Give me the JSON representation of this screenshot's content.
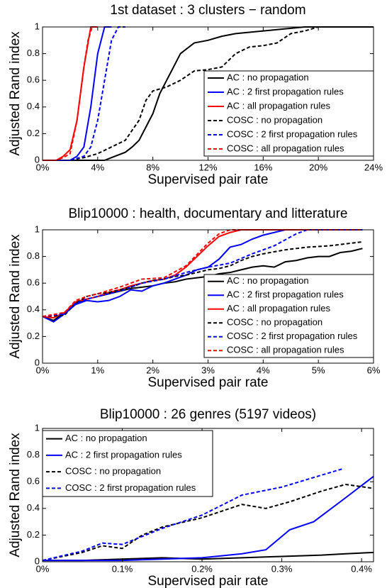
{
  "chart_data": [
    {
      "type": "line",
      "title": "1st dataset : 3 clusters − random",
      "xlabel": "Supervised pair rate",
      "ylabel": "Adjusted Rand index",
      "xlim": [
        0,
        24
      ],
      "ylim": [
        0,
        1
      ],
      "xticks": [
        {
          "value": 0,
          "label": "0%"
        },
        {
          "value": 4,
          "label": "4%"
        },
        {
          "value": 8,
          "label": "8%"
        },
        {
          "value": 12,
          "label": "12%"
        },
        {
          "value": 16,
          "label": "16%"
        },
        {
          "value": 20,
          "label": "20%"
        },
        {
          "value": 24,
          "label": "24%"
        }
      ],
      "yticks": [
        0,
        0.2,
        0.4,
        0.6,
        0.8,
        1
      ],
      "legend": "lower right",
      "series": [
        {
          "name": "AC : no propagation",
          "color": "#000000",
          "linestyle": "solid",
          "x": [
            0,
            4.5,
            5,
            6,
            6.5,
            7,
            7.5,
            8,
            8.5,
            9,
            9.5,
            10,
            11,
            12,
            13,
            14,
            15,
            16,
            17,
            18,
            19,
            24
          ],
          "values": [
            0,
            0,
            0.02,
            0.06,
            0.1,
            0.15,
            0.25,
            0.35,
            0.5,
            0.6,
            0.7,
            0.8,
            0.88,
            0.9,
            0.93,
            0.95,
            0.96,
            0.97,
            0.98,
            0.99,
            1,
            1
          ]
        },
        {
          "name": "AC : 2 first propagation rules",
          "color": "#0000ff",
          "linestyle": "solid",
          "x": [
            0,
            2,
            2.5,
            3,
            3.5,
            4,
            4.5,
            5
          ],
          "values": [
            0,
            0,
            0.03,
            0.1,
            0.4,
            0.8,
            1,
            1
          ]
        },
        {
          "name": "AC : all propagation rules",
          "color": "#ff0000",
          "linestyle": "solid",
          "x": [
            0,
            1,
            1.5,
            2,
            2.5,
            3,
            3.5,
            4
          ],
          "values": [
            0,
            0,
            0.03,
            0.08,
            0.3,
            0.7,
            1,
            1
          ]
        },
        {
          "name": "COSC : no propagation",
          "color": "#000000",
          "linestyle": "dashed",
          "x": [
            0,
            2,
            3,
            4,
            5,
            6,
            7,
            7.5,
            8,
            9,
            10,
            11,
            12,
            13,
            14,
            15,
            16,
            17,
            18,
            19,
            20,
            21
          ],
          "values": [
            0,
            0,
            0.02,
            0.05,
            0.1,
            0.15,
            0.3,
            0.45,
            0.52,
            0.55,
            0.6,
            0.67,
            0.68,
            0.7,
            0.8,
            0.85,
            0.86,
            0.88,
            0.95,
            0.97,
            1,
            1
          ]
        },
        {
          "name": "COSC : 2 first propagation rules",
          "color": "#0000ff",
          "linestyle": "dashed",
          "x": [
            0,
            2,
            3,
            3.5,
            4,
            4.5,
            5,
            5.5,
            6
          ],
          "values": [
            0,
            0,
            0.03,
            0.1,
            0.3,
            0.6,
            0.9,
            1,
            1
          ]
        },
        {
          "name": "COSC : all propagation rules",
          "color": "#ff0000",
          "linestyle": "dashed",
          "x": [
            0,
            1,
            1.5,
            2,
            2.5,
            3,
            3.3,
            3.6
          ],
          "values": [
            0,
            0,
            0.02,
            0.05,
            0.3,
            0.7,
            0.9,
            1
          ]
        }
      ]
    },
    {
      "type": "line",
      "title": "Blip10000 : health, documentary and litterature",
      "xlabel": "Supervised pair rate",
      "ylabel": "Adjusted Rand index",
      "xlim": [
        0,
        6
      ],
      "ylim": [
        0,
        1
      ],
      "xticks": [
        {
          "value": 0,
          "label": "0%"
        },
        {
          "value": 1,
          "label": "1%"
        },
        {
          "value": 2,
          "label": "2%"
        },
        {
          "value": 3,
          "label": "3%"
        },
        {
          "value": 4,
          "label": "4%"
        },
        {
          "value": 5,
          "label": "5%"
        },
        {
          "value": 6,
          "label": "6%"
        }
      ],
      "yticks": [
        0,
        0.2,
        0.4,
        0.6,
        0.8,
        1
      ],
      "legend": "lower right",
      "series": [
        {
          "name": "AC : no propagation",
          "color": "#000000",
          "linestyle": "solid",
          "x": [
            0,
            0.2,
            0.4,
            0.6,
            0.8,
            1.0,
            1.2,
            1.4,
            1.6,
            1.8,
            2.0,
            2.2,
            2.4,
            2.6,
            2.8,
            3.0,
            3.2,
            3.4,
            3.6,
            3.8,
            4.0,
            4.2,
            4.4,
            4.6,
            4.8,
            5.0,
            5.2,
            5.4,
            5.6,
            5.8
          ],
          "values": [
            0.35,
            0.32,
            0.38,
            0.45,
            0.48,
            0.5,
            0.52,
            0.54,
            0.56,
            0.57,
            0.58,
            0.6,
            0.61,
            0.63,
            0.64,
            0.65,
            0.67,
            0.68,
            0.7,
            0.72,
            0.73,
            0.72,
            0.76,
            0.77,
            0.79,
            0.8,
            0.8,
            0.83,
            0.84,
            0.86
          ]
        },
        {
          "name": "AC : 2 first propagation rules",
          "color": "#0000ff",
          "linestyle": "solid",
          "x": [
            0,
            0.2,
            0.4,
            0.6,
            0.8,
            1.0,
            1.2,
            1.4,
            1.6,
            1.8,
            2.0,
            2.2,
            2.4,
            2.6,
            2.8,
            3.0,
            3.2,
            3.4,
            3.6,
            3.8,
            4.0,
            4.2,
            4.4,
            4.6,
            5.8
          ],
          "values": [
            0.35,
            0.31,
            0.37,
            0.44,
            0.47,
            0.46,
            0.47,
            0.5,
            0.55,
            0.54,
            0.58,
            0.6,
            0.63,
            0.66,
            0.7,
            0.72,
            0.78,
            0.87,
            0.89,
            0.93,
            0.96,
            0.98,
            1,
            1,
            1
          ]
        },
        {
          "name": "AC : all propagation rules",
          "color": "#ff0000",
          "linestyle": "solid",
          "x": [
            0,
            0.2,
            0.4,
            0.6,
            0.8,
            1.0,
            1.2,
            1.4,
            1.6,
            1.8,
            2.0,
            2.2,
            2.4,
            2.6,
            2.8,
            3.0,
            3.2,
            3.4,
            3.6,
            5.8
          ],
          "values": [
            0.35,
            0.34,
            0.38,
            0.46,
            0.48,
            0.5,
            0.53,
            0.55,
            0.58,
            0.6,
            0.62,
            0.63,
            0.66,
            0.72,
            0.8,
            0.88,
            0.95,
            0.98,
            1,
            1
          ]
        },
        {
          "name": "COSC : no propagation",
          "color": "#000000",
          "linestyle": "dashed",
          "x": [
            0,
            0.4,
            0.6,
            0.8,
            1.0,
            1.2,
            1.4,
            1.6,
            1.8,
            2.0,
            2.2,
            2.4,
            2.6,
            2.8,
            3.0,
            3.2,
            3.4,
            3.6,
            3.8,
            4.0,
            4.4,
            4.8,
            5.2,
            5.6,
            5.8
          ],
          "values": [
            0.35,
            0.36,
            0.45,
            0.5,
            0.52,
            0.53,
            0.55,
            0.57,
            0.6,
            0.62,
            0.63,
            0.65,
            0.66,
            0.68,
            0.7,
            0.71,
            0.73,
            0.77,
            0.8,
            0.82,
            0.85,
            0.87,
            0.88,
            0.9,
            0.91
          ]
        },
        {
          "name": "COSC : 2 first propagation rules",
          "color": "#0000ff",
          "linestyle": "dashed",
          "x": [
            0,
            0.4,
            0.6,
            0.8,
            1.0,
            1.4,
            1.8,
            2.2,
            2.6,
            3.0,
            3.4,
            3.8,
            4.2,
            4.6,
            4.8,
            5.8
          ],
          "values": [
            0.35,
            0.37,
            0.45,
            0.48,
            0.5,
            0.54,
            0.6,
            0.63,
            0.68,
            0.72,
            0.75,
            0.82,
            0.88,
            0.97,
            1,
            1
          ]
        },
        {
          "name": "COSC : all propagation rules",
          "color": "#ff0000",
          "linestyle": "dashed",
          "x": [
            0,
            0.4,
            0.6,
            0.8,
            1.0,
            1.4,
            1.8,
            2.2,
            2.6,
            3.0,
            3.2,
            3.4,
            5.8
          ],
          "values": [
            0.35,
            0.38,
            0.47,
            0.5,
            0.52,
            0.57,
            0.63,
            0.64,
            0.73,
            0.9,
            0.97,
            1,
            1
          ]
        }
      ]
    },
    {
      "type": "line",
      "title": "Blip10000 : 26 genres (5197 videos)",
      "xlabel": "Supervised pair rate",
      "ylabel": "Adjusted Rand index",
      "xlim": [
        0,
        0.415
      ],
      "ylim": [
        0,
        1
      ],
      "xticks": [
        {
          "value": 0,
          "label": "0%"
        },
        {
          "value": 0.1,
          "label": "0.1%"
        },
        {
          "value": 0.2,
          "label": "0.2%"
        },
        {
          "value": 0.3,
          "label": "0.3%"
        },
        {
          "value": 0.4,
          "label": "0.4%"
        }
      ],
      "yticks": [
        0,
        0.2,
        0.4,
        0.6,
        0.8,
        1
      ],
      "legend": "upper left",
      "series": [
        {
          "name": "AC : no propagation",
          "color": "#000000",
          "linestyle": "solid",
          "x": [
            0,
            0.05,
            0.1,
            0.15,
            0.2,
            0.25,
            0.3,
            0.35,
            0.38,
            0.415
          ],
          "values": [
            0.01,
            0.01,
            0.02,
            0.03,
            0.02,
            0.03,
            0.04,
            0.05,
            0.06,
            0.07
          ]
        },
        {
          "name": "AC : 2 first propagation rules",
          "color": "#0000ff",
          "linestyle": "solid",
          "x": [
            0,
            0.1,
            0.15,
            0.2,
            0.25,
            0.28,
            0.31,
            0.34,
            0.38,
            0.415
          ],
          "values": [
            0.01,
            0.01,
            0.02,
            0.03,
            0.06,
            0.09,
            0.24,
            0.3,
            0.48,
            0.64
          ]
        },
        {
          "name": "COSC : no propagation",
          "color": "#000000",
          "linestyle": "dashed",
          "x": [
            0,
            0.05,
            0.075,
            0.1,
            0.125,
            0.15,
            0.2,
            0.25,
            0.28,
            0.31,
            0.35,
            0.38,
            0.415
          ],
          "values": [
            0.01,
            0.07,
            0.12,
            0.1,
            0.2,
            0.26,
            0.33,
            0.43,
            0.4,
            0.45,
            0.53,
            0.58,
            0.55
          ]
        },
        {
          "name": "COSC : 2 first propagation rules",
          "color": "#0000ff",
          "linestyle": "dashed",
          "x": [
            0,
            0.05,
            0.075,
            0.1,
            0.15,
            0.2,
            0.25,
            0.3,
            0.35,
            0.378
          ],
          "values": [
            0.01,
            0.08,
            0.14,
            0.13,
            0.25,
            0.35,
            0.5,
            0.56,
            0.65,
            0.7
          ]
        }
      ]
    }
  ]
}
